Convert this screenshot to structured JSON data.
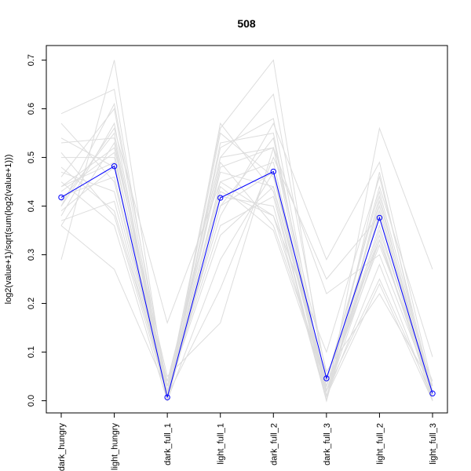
{
  "chart_data": {
    "type": "line",
    "title": "508",
    "ylabel": "log2(value+1)/sqrt(sum(log2(value+1)))",
    "categories": [
      "dark_hungry",
      "light_hungry",
      "dark_full_1",
      "light_full_1",
      "dark_full_2",
      "dark_full_3",
      "light_full_2",
      "light_full_3"
    ],
    "y_ticks": [
      "0.0",
      "0.1",
      "0.2",
      "0.3",
      "0.4",
      "0.5",
      "0.6",
      "0.7"
    ],
    "ylim": [
      -0.025,
      0.73
    ],
    "grid": false,
    "highlight_series": {
      "color": "#0000ff",
      "values": [
        0.418,
        0.482,
        0.007,
        0.417,
        0.471,
        0.046,
        0.376,
        0.015
      ]
    },
    "background_series_color": "#dddddd",
    "background_series": [
      [
        0.29,
        0.7,
        0.01,
        0.4,
        0.47,
        0.03,
        0.4,
        0.01
      ],
      [
        0.36,
        0.27,
        0.02,
        0.56,
        0.7,
        0.02,
        0.35,
        0.02
      ],
      [
        0.59,
        0.64,
        0.0,
        0.48,
        0.52,
        0.01,
        0.24,
        0.0
      ],
      [
        0.54,
        0.48,
        0.03,
        0.5,
        0.63,
        0.05,
        0.33,
        0.01
      ],
      [
        0.46,
        0.6,
        0.0,
        0.57,
        0.43,
        0.0,
        0.56,
        0.27
      ],
      [
        0.4,
        0.56,
        0.16,
        0.45,
        0.38,
        0.1,
        0.46,
        0.02
      ],
      [
        0.57,
        0.45,
        0.01,
        0.23,
        0.5,
        0.25,
        0.38,
        0.01
      ],
      [
        0.48,
        0.39,
        0.02,
        0.38,
        0.57,
        0.29,
        0.49,
        0.03
      ],
      [
        0.44,
        0.52,
        0.05,
        0.16,
        0.52,
        0.22,
        0.3,
        0.02
      ],
      [
        0.38,
        0.57,
        0.0,
        0.42,
        0.4,
        0.0,
        0.42,
        0.0
      ],
      [
        0.42,
        0.46,
        0.01,
        0.55,
        0.46,
        0.02,
        0.25,
        0.01
      ],
      [
        0.5,
        0.5,
        0.04,
        0.47,
        0.44,
        0.04,
        0.44,
        0.09
      ],
      [
        0.45,
        0.36,
        0.0,
        0.52,
        0.58,
        0.01,
        0.33,
        0.02
      ],
      [
        0.36,
        0.53,
        0.02,
        0.44,
        0.35,
        0.03,
        0.38,
        0.01
      ],
      [
        0.53,
        0.54,
        0.0,
        0.29,
        0.47,
        0.0,
        0.47,
        0.0
      ],
      [
        0.4,
        0.61,
        0.03,
        0.5,
        0.52,
        0.06,
        0.22,
        0.03
      ],
      [
        0.47,
        0.43,
        0.01,
        0.45,
        0.49,
        0.02,
        0.36,
        0.01
      ],
      [
        0.39,
        0.48,
        0.02,
        0.36,
        0.42,
        0.0,
        0.41,
        0.02
      ],
      [
        0.43,
        0.51,
        0.0,
        0.4,
        0.54,
        0.01,
        0.28,
        0.0
      ],
      [
        0.37,
        0.41,
        0.01,
        0.43,
        0.38,
        0.03,
        0.32,
        0.04
      ],
      [
        0.44,
        0.49,
        0.0,
        0.53,
        0.55,
        0.0,
        0.39,
        0.01
      ],
      [
        0.41,
        0.55,
        0.02,
        0.34,
        0.44,
        0.02,
        0.34,
        0.0
      ],
      [
        0.51,
        0.38,
        0.01,
        0.49,
        0.36,
        0.04,
        0.43,
        0.02
      ]
    ]
  }
}
